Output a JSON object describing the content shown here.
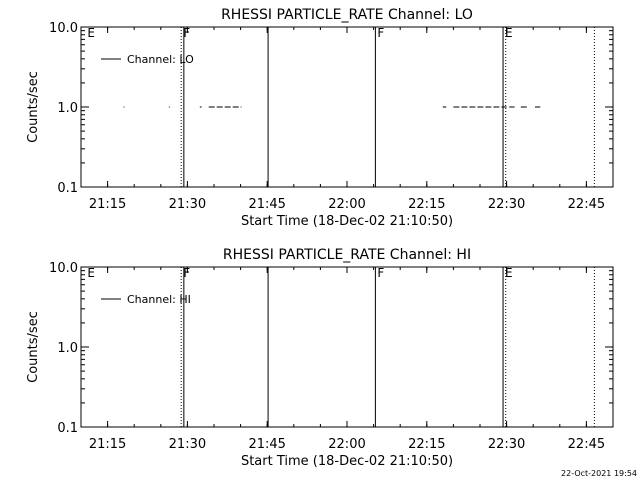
{
  "footer": {
    "timestamp": "22-Oct-2021 19:54"
  },
  "chart_data": [
    {
      "type": "line",
      "title": "RHESSI PARTICLE_RATE Channel: LO",
      "xlabel": "Start Time (18-Dec-02 21:10:50)",
      "ylabel": "Counts/sec",
      "y_scale": "log",
      "ylim": [
        0.1,
        10.0
      ],
      "xlim": [
        "21:10",
        "22:50"
      ],
      "x_ticks": [
        "21:15",
        "21:30",
        "21:45",
        "22:00",
        "22:15",
        "22:30",
        "22:45"
      ],
      "y_ticks": [
        "0.1",
        "1.0",
        "10.0"
      ],
      "grid": false,
      "legend": "top-left",
      "legend_entries": [
        "Channel: LO"
      ],
      "series": [
        {
          "name": "Channel: LO",
          "segments": [
            {
              "x": [
                "21:18:00",
                "21:18:10"
              ],
              "y": [
                1.0,
                1.0
              ]
            },
            {
              "x": [
                "21:26:30",
                "21:26:40"
              ],
              "y": [
                1.0,
                1.0
              ]
            },
            {
              "x": [
                "21:32:20",
                "21:32:40"
              ],
              "y": [
                1.0,
                1.0
              ]
            },
            {
              "x": [
                "21:34:00",
                "21:40:10"
              ],
              "y": [
                1.0,
                1.0
              ]
            },
            {
              "x": [
                "22:18:00",
                "22:18:40"
              ],
              "y": [
                1.0,
                1.0
              ]
            },
            {
              "x": [
                "22:20:00",
                "22:30:00"
              ],
              "y": [
                1.0,
                1.0
              ]
            },
            {
              "x": [
                "22:30:30",
                "22:31:30"
              ],
              "y": [
                1.0,
                1.0
              ]
            },
            {
              "x": [
                "22:32:40",
                "22:33:50"
              ],
              "y": [
                1.0,
                1.0
              ]
            },
            {
              "x": [
                "22:35:20",
                "22:36:20"
              ],
              "y": [
                1.0,
                1.0
              ]
            }
          ]
        }
      ],
      "annotations": [
        {
          "label": "E",
          "x": "21:10:50",
          "line": "none"
        },
        {
          "label": "F",
          "x": "21:28:50",
          "line": "dotted"
        },
        {
          "label": "",
          "x": "21:29:20",
          "line": "solid"
        },
        {
          "label": "",
          "x": "21:45:10",
          "line": "solid"
        },
        {
          "label": "F",
          "x": "22:05:20",
          "line": "solid"
        },
        {
          "label": "E",
          "x": "22:29:20",
          "line": "solid"
        },
        {
          "label": "",
          "x": "22:29:50",
          "line": "dotted"
        },
        {
          "label": "",
          "x": "22:46:30",
          "line": "dotted"
        }
      ]
    },
    {
      "type": "line",
      "title": "RHESSI PARTICLE_RATE Channel: HI",
      "xlabel": "Start Time (18-Dec-02 21:10:50)",
      "ylabel": "Counts/sec",
      "y_scale": "log",
      "ylim": [
        0.1,
        10.0
      ],
      "xlim": [
        "21:10",
        "22:50"
      ],
      "x_ticks": [
        "21:15",
        "21:30",
        "21:45",
        "22:00",
        "22:15",
        "22:30",
        "22:45"
      ],
      "y_ticks": [
        "0.1",
        "1.0",
        "10.0"
      ],
      "grid": false,
      "legend": "top-left",
      "legend_entries": [
        "Channel: HI"
      ],
      "series": [
        {
          "name": "Channel: HI",
          "segments": []
        }
      ],
      "annotations": [
        {
          "label": "E",
          "x": "21:10:50",
          "line": "none"
        },
        {
          "label": "F",
          "x": "21:28:50",
          "line": "dotted"
        },
        {
          "label": "",
          "x": "21:29:20",
          "line": "solid"
        },
        {
          "label": "",
          "x": "21:45:10",
          "line": "solid"
        },
        {
          "label": "F",
          "x": "22:05:20",
          "line": "solid"
        },
        {
          "label": "E",
          "x": "22:29:20",
          "line": "solid"
        },
        {
          "label": "",
          "x": "22:29:50",
          "line": "dotted"
        },
        {
          "label": "",
          "x": "22:46:30",
          "line": "dotted"
        }
      ]
    }
  ]
}
